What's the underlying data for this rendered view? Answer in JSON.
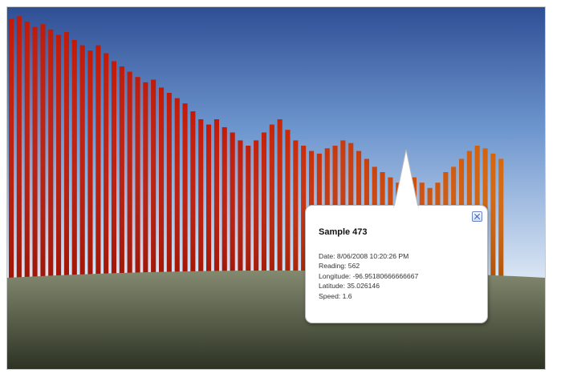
{
  "colors": {
    "sky_top": "#2f4f95",
    "sky_mid": "#6f97cf",
    "sky_bottom": "#dde8f5",
    "ground_top": "#848a70",
    "ground_bottom": "#2c3323",
    "bar_red": "#c31a07",
    "bar_orange": "#d46a0e"
  },
  "scene": {
    "bar_heights_relative": [
      0.98,
      0.99,
      0.97,
      0.95,
      0.96,
      0.94,
      0.92,
      0.93,
      0.9,
      0.88,
      0.86,
      0.88,
      0.85,
      0.82,
      0.8,
      0.78,
      0.76,
      0.74,
      0.75,
      0.72,
      0.7,
      0.68,
      0.66,
      0.63,
      0.6,
      0.58,
      0.6,
      0.57,
      0.55,
      0.52,
      0.5,
      0.52,
      0.55,
      0.58,
      0.6,
      0.56,
      0.52,
      0.5,
      0.48,
      0.47,
      0.49,
      0.5,
      0.52,
      0.51,
      0.48,
      0.45,
      0.42,
      0.4,
      0.38,
      0.36,
      0.35,
      0.38,
      0.36,
      0.34,
      0.36,
      0.4,
      0.42,
      0.45,
      0.48,
      0.5,
      0.49,
      0.47,
      0.45
    ]
  },
  "balloon": {
    "title": "Sample 473",
    "fields": [
      "Date: 8/06/2008 10:20:26 PM",
      "Reading: 562",
      "Longitude: -96.95180666666667",
      "Latitude: 35.026146",
      "Speed: 1.6"
    ],
    "close_icon": "close-x-icon"
  }
}
